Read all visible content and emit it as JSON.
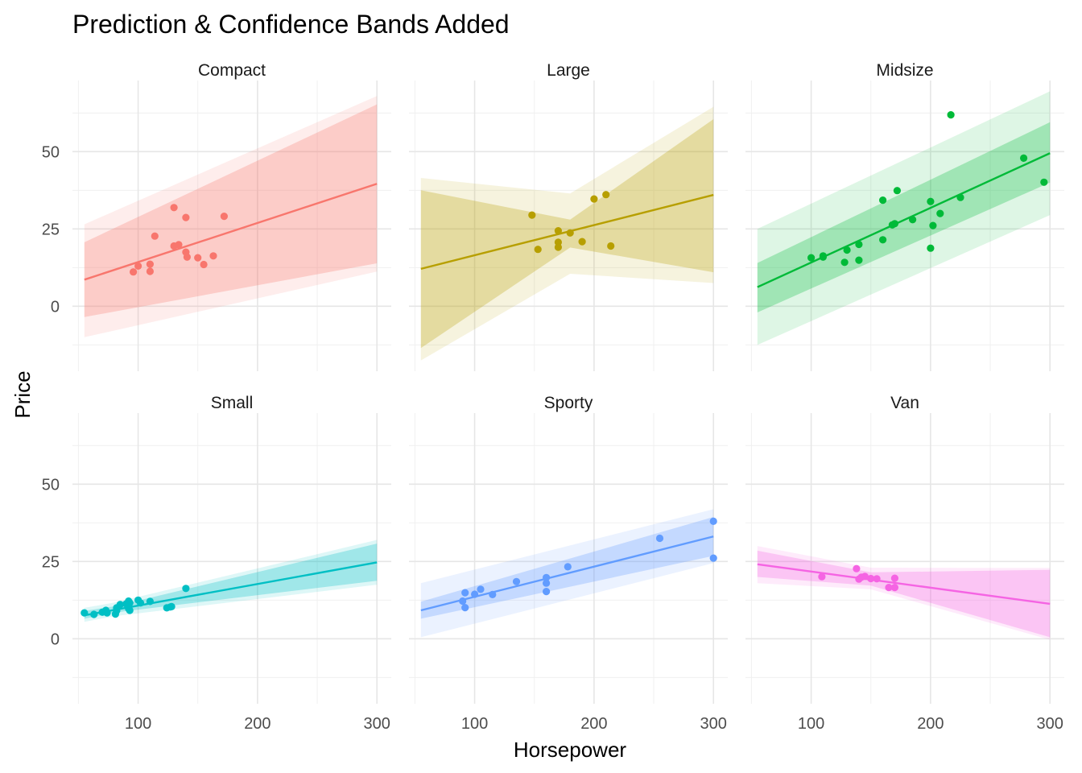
{
  "chart_data": {
    "type": "scatter",
    "title": "Prediction & Confidence Bands Added",
    "xlabel": "Horsepower",
    "ylabel": "Price",
    "xlim": [
      45,
      312
    ],
    "ylim": [
      -21,
      73
    ],
    "x_ticks": [
      100,
      200,
      300
    ],
    "y_ticks": [
      0,
      25,
      50
    ],
    "grid": true,
    "facets": [
      {
        "label": "Compact",
        "color": "#F8766D",
        "fit": {
          "x": [
            55,
            300
          ],
          "y": [
            8.6,
            39.6
          ]
        },
        "confidence_band": {
          "x": [
            55,
            300
          ],
          "lower": [
            -3.5,
            13.9
          ],
          "upper": [
            20.7,
            65.3
          ]
        },
        "prediction_band": {
          "x": [
            55,
            300
          ],
          "lower": [
            -10.0,
            11.2
          ],
          "upper": [
            26.5,
            68.0
          ]
        },
        "points": [
          {
            "x": 96,
            "y": 11.1
          },
          {
            "x": 100,
            "y": 13.0
          },
          {
            "x": 110,
            "y": 13.6
          },
          {
            "x": 110,
            "y": 11.3
          },
          {
            "x": 114,
            "y": 22.7
          },
          {
            "x": 130,
            "y": 31.9
          },
          {
            "x": 130,
            "y": 19.5
          },
          {
            "x": 134,
            "y": 19.9
          },
          {
            "x": 140,
            "y": 28.7
          },
          {
            "x": 140,
            "y": 17.5
          },
          {
            "x": 141,
            "y": 15.9
          },
          {
            "x": 150,
            "y": 15.7
          },
          {
            "x": 155,
            "y": 13.5
          },
          {
            "x": 163,
            "y": 16.3
          },
          {
            "x": 172,
            "y": 29.1
          }
        ]
      },
      {
        "label": "Large",
        "color": "#B79F00",
        "fit": {
          "x": [
            55,
            300
          ],
          "y": [
            12.1,
            36.0
          ]
        },
        "confidence_band": {
          "x": [
            55,
            180,
            300
          ],
          "lower": [
            -13.5,
            19.0,
            11.0
          ],
          "upper": [
            37.5,
            28.0,
            60.5
          ]
        },
        "prediction_band": {
          "x": [
            55,
            180,
            300
          ],
          "lower": [
            -17.5,
            10.5,
            7.5
          ],
          "upper": [
            41.5,
            36.5,
            64.5
          ]
        },
        "points": [
          {
            "x": 148,
            "y": 29.5
          },
          {
            "x": 153,
            "y": 18.4
          },
          {
            "x": 170,
            "y": 24.4
          },
          {
            "x": 170,
            "y": 20.7
          },
          {
            "x": 170,
            "y": 19.1
          },
          {
            "x": 180,
            "y": 23.7
          },
          {
            "x": 190,
            "y": 20.9
          },
          {
            "x": 200,
            "y": 34.7
          },
          {
            "x": 210,
            "y": 36.1
          },
          {
            "x": 214,
            "y": 19.5
          }
        ]
      },
      {
        "label": "Midsize",
        "color": "#00BA38",
        "fit": {
          "x": [
            55,
            300
          ],
          "y": [
            6.2,
            49.5
          ]
        },
        "confidence_band": {
          "x": [
            55,
            300
          ],
          "lower": [
            -2.0,
            40.0
          ],
          "upper": [
            14.0,
            59.5
          ]
        },
        "prediction_band": {
          "x": [
            55,
            300
          ],
          "lower": [
            -12.5,
            29.5
          ],
          "upper": [
            25.0,
            69.5
          ]
        },
        "points": [
          {
            "x": 100,
            "y": 15.7
          },
          {
            "x": 110,
            "y": 16.3
          },
          {
            "x": 110,
            "y": 15.9
          },
          {
            "x": 128,
            "y": 14.2
          },
          {
            "x": 130,
            "y": 18.2
          },
          {
            "x": 140,
            "y": 20.0
          },
          {
            "x": 140,
            "y": 14.9
          },
          {
            "x": 160,
            "y": 21.5
          },
          {
            "x": 160,
            "y": 34.3
          },
          {
            "x": 168,
            "y": 26.3
          },
          {
            "x": 170,
            "y": 26.7
          },
          {
            "x": 172,
            "y": 37.4
          },
          {
            "x": 185,
            "y": 28.0
          },
          {
            "x": 200,
            "y": 33.9
          },
          {
            "x": 200,
            "y": 18.8
          },
          {
            "x": 202,
            "y": 26.1
          },
          {
            "x": 208,
            "y": 30.0
          },
          {
            "x": 217,
            "y": 61.9
          },
          {
            "x": 225,
            "y": 35.2
          },
          {
            "x": 278,
            "y": 47.9
          },
          {
            "x": 295,
            "y": 40.1
          }
        ]
      },
      {
        "label": "Small",
        "color": "#00BFC4",
        "fit": {
          "x": [
            55,
            300
          ],
          "y": [
            7.6,
            24.7
          ]
        },
        "confidence_band": {
          "x": [
            55,
            80,
            300
          ],
          "lower": [
            6.5,
            8.5,
            18.8
          ],
          "upper": [
            9.0,
            10.5,
            30.8
          ]
        },
        "prediction_band": {
          "x": [
            55,
            80,
            300
          ],
          "lower": [
            5.5,
            7.3,
            17.5
          ],
          "upper": [
            10.0,
            11.7,
            32.0
          ]
        },
        "points": [
          {
            "x": 55,
            "y": 8.4
          },
          {
            "x": 63,
            "y": 7.9
          },
          {
            "x": 70,
            "y": 8.6
          },
          {
            "x": 73,
            "y": 9.2
          },
          {
            "x": 74,
            "y": 8.4
          },
          {
            "x": 81,
            "y": 8.0
          },
          {
            "x": 82,
            "y": 9.1
          },
          {
            "x": 82,
            "y": 10.0
          },
          {
            "x": 85,
            "y": 11.1
          },
          {
            "x": 90,
            "y": 11.3
          },
          {
            "x": 92,
            "y": 12.2
          },
          {
            "x": 92,
            "y": 9.8
          },
          {
            "x": 92,
            "y": 10.9
          },
          {
            "x": 93,
            "y": 11.6
          },
          {
            "x": 93,
            "y": 9.2
          },
          {
            "x": 100,
            "y": 12.5
          },
          {
            "x": 102,
            "y": 11.6
          },
          {
            "x": 110,
            "y": 12.1
          },
          {
            "x": 124,
            "y": 10.0
          },
          {
            "x": 127,
            "y": 10.3
          },
          {
            "x": 128,
            "y": 10.4
          },
          {
            "x": 140,
            "y": 16.3
          }
        ]
      },
      {
        "label": "Sporty",
        "color": "#619CFF",
        "fit": {
          "x": [
            55,
            300
          ],
          "y": [
            9.2,
            33.1
          ]
        },
        "confidence_band": {
          "x": [
            55,
            300
          ],
          "lower": [
            6.5,
            26.8
          ],
          "upper": [
            12.0,
            39.4
          ]
        },
        "prediction_band": {
          "x": [
            55,
            300
          ],
          "lower": [
            0.5,
            24.5
          ],
          "upper": [
            18.0,
            41.9
          ]
        },
        "points": [
          {
            "x": 90,
            "y": 12.2
          },
          {
            "x": 92,
            "y": 14.9
          },
          {
            "x": 92,
            "y": 10.1
          },
          {
            "x": 100,
            "y": 14.4
          },
          {
            "x": 105,
            "y": 16.0
          },
          {
            "x": 115,
            "y": 14.3
          },
          {
            "x": 135,
            "y": 18.5
          },
          {
            "x": 160,
            "y": 19.8
          },
          {
            "x": 160,
            "y": 18.0
          },
          {
            "x": 160,
            "y": 15.3
          },
          {
            "x": 178,
            "y": 23.3
          },
          {
            "x": 255,
            "y": 32.5
          },
          {
            "x": 300,
            "y": 38.0
          },
          {
            "x": 300,
            "y": 26.1
          }
        ]
      },
      {
        "label": "Van",
        "color": "#F564E3",
        "fit": {
          "x": [
            55,
            300
          ],
          "y": [
            24.1,
            11.3
          ]
        },
        "confidence_band": {
          "x": [
            55,
            150,
            300
          ],
          "lower": [
            20.0,
            17.2,
            0.5
          ],
          "upper": [
            28.5,
            21.5,
            22.3
          ]
        },
        "prediction_band": {
          "x": [
            55,
            150,
            300
          ],
          "lower": [
            18.0,
            16.0,
            -0.3
          ],
          "upper": [
            30.0,
            23.0,
            22.9
          ]
        },
        "points": [
          {
            "x": 109,
            "y": 20.1
          },
          {
            "x": 138,
            "y": 22.7
          },
          {
            "x": 140,
            "y": 19.3
          },
          {
            "x": 142,
            "y": 19.9
          },
          {
            "x": 145,
            "y": 20.2
          },
          {
            "x": 150,
            "y": 19.5
          },
          {
            "x": 155,
            "y": 19.4
          },
          {
            "x": 165,
            "y": 16.6
          },
          {
            "x": 170,
            "y": 19.6
          },
          {
            "x": 170,
            "y": 16.6
          }
        ]
      }
    ]
  }
}
